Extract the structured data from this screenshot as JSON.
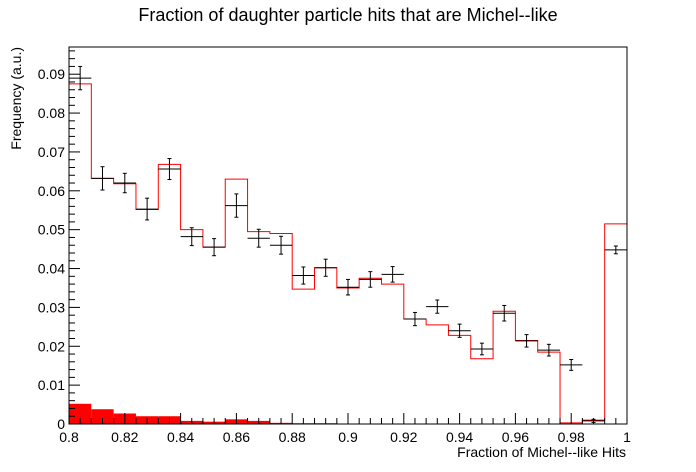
{
  "chart_data": {
    "type": "histogram",
    "title": "Fraction of daughter particle hits that are Michel--like",
    "xlabel": "Fraction of Michel--like Hits",
    "ylabel": "Frequency (a.u.)",
    "xlim": [
      0.8,
      1.0
    ],
    "ylim": [
      0,
      0.097
    ],
    "x_ticks": [
      0.8,
      0.82,
      0.84,
      0.86,
      0.88,
      0.9,
      0.92,
      0.94,
      0.96,
      0.98,
      1.0
    ],
    "x_tick_labels": [
      "0.8",
      "0.82",
      "0.84",
      "0.86",
      "0.88",
      "0.9",
      "0.92",
      "0.94",
      "0.96",
      "0.98",
      "1"
    ],
    "y_ticks": [
      0,
      0.01,
      0.02,
      0.03,
      0.04,
      0.05,
      0.06,
      0.07,
      0.08,
      0.09
    ],
    "y_tick_labels": [
      "0",
      "0.01",
      "0.02",
      "0.03",
      "0.04",
      "0.05",
      "0.06",
      "0.07",
      "0.08",
      "0.09"
    ],
    "bin_edges": [
      0.8,
      0.808,
      0.816,
      0.824,
      0.832,
      0.84,
      0.848,
      0.856,
      0.864,
      0.872,
      0.88,
      0.888,
      0.896,
      0.904,
      0.912,
      0.92,
      0.928,
      0.936,
      0.944,
      0.952,
      0.96,
      0.968,
      0.976,
      0.984,
      0.992,
      1.0
    ],
    "series": [
      {
        "style": "step-line",
        "color": "#ff0000",
        "values": [
          0.0875,
          0.0632,
          0.0618,
          0.0552,
          0.0668,
          0.05,
          0.0455,
          0.063,
          0.0495,
          0.049,
          0.0347,
          0.0402,
          0.035,
          0.0375,
          0.036,
          0.027,
          0.0255,
          0.0228,
          0.0168,
          0.029,
          0.0215,
          0.0185,
          0.0003,
          0.001,
          0.0515
        ]
      },
      {
        "style": "points-with-errors",
        "color": "#000000",
        "values": [
          0.089,
          0.0632,
          0.062,
          0.0553,
          0.0656,
          0.0482,
          0.0455,
          0.0562,
          0.0478,
          0.046,
          0.0382,
          0.0402,
          0.0352,
          0.0372,
          0.0385,
          0.027,
          0.0302,
          0.024,
          0.0193,
          0.0285,
          0.0214,
          0.019,
          0.0152,
          0.0008,
          0.0448
        ],
        "errors": [
          0.003,
          0.003,
          0.0025,
          0.0028,
          0.0027,
          0.0023,
          0.0022,
          0.003,
          0.0023,
          0.0023,
          0.0022,
          0.0022,
          0.002,
          0.002,
          0.002,
          0.0017,
          0.0017,
          0.0017,
          0.0015,
          0.002,
          0.0016,
          0.0015,
          0.0014,
          0.0004,
          0.001
        ]
      },
      {
        "style": "filled",
        "color": "#ff0000",
        "values": [
          0.0052,
          0.0038,
          0.0027,
          0.002,
          0.002,
          0.0008,
          0.0006,
          0.0012,
          0.0008,
          0.0003,
          0.0002,
          0.0002,
          0.0001,
          0,
          0,
          0,
          0,
          0,
          0,
          0,
          0,
          0,
          0,
          0,
          0
        ]
      }
    ]
  }
}
